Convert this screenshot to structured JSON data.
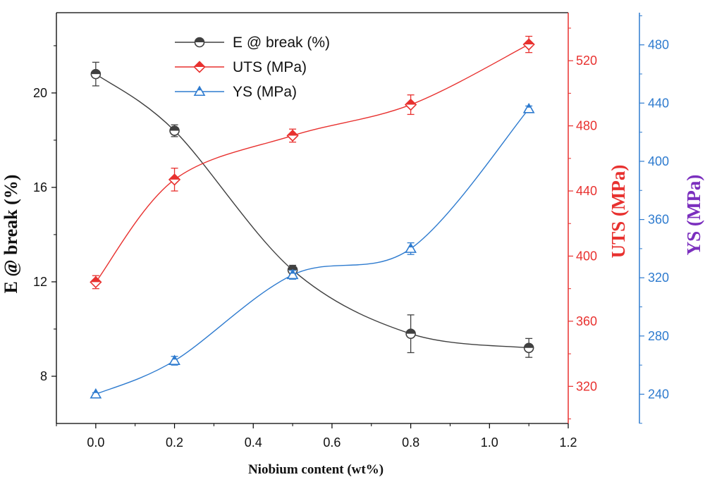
{
  "chart_data": {
    "type": "line",
    "xlabel": "Niobium content (wt%)",
    "x_ticks": [
      "0.0",
      "0.2",
      "0.4",
      "0.6",
      "0.8",
      "1.0",
      "1.2"
    ],
    "xlim": [
      -0.1,
      1.2
    ],
    "axes": {
      "left": {
        "label": "E @ break (%)",
        "ylim": [
          6,
          23.4
        ],
        "ticks": [
          "8",
          "12",
          "16",
          "20"
        ],
        "color": "#000000"
      },
      "right1": {
        "label": "UTS (MPa)",
        "ylim": [
          297.2,
          549.5
        ],
        "ticks": [
          "320",
          "360",
          "400",
          "440",
          "480",
          "520"
        ],
        "color": "#e8312f"
      },
      "right2": {
        "label": "YS (MPa)",
        "ylim": [
          219.9,
          502.1
        ],
        "ticks": [
          "240",
          "280",
          "320",
          "360",
          "400",
          "440",
          "480"
        ],
        "color": "#2e7bcf",
        "label_color": "#7b2fbe"
      }
    },
    "legend_position": "top-left",
    "grid": false,
    "series": [
      {
        "name": "E @ break (%)",
        "axis": "left",
        "color": "#404040",
        "marker": "circle-half",
        "x": [
          0.0,
          0.2,
          0.5,
          0.8,
          1.1
        ],
        "y": [
          20.8,
          18.4,
          12.5,
          9.8,
          9.2
        ],
        "err": [
          0.5,
          0.25,
          0.2,
          0.8,
          0.4
        ]
      },
      {
        "name": "UTS (MPa)",
        "axis": "right1",
        "color": "#e8312f",
        "marker": "diamond-half",
        "x": [
          0.0,
          0.2,
          0.5,
          0.8,
          1.1
        ],
        "y": [
          384,
          447,
          474,
          493,
          530
        ],
        "err": [
          4,
          7,
          4,
          6,
          5
        ]
      },
      {
        "name": "YS (MPa)",
        "axis": "right2",
        "color": "#2e7bcf",
        "marker": "triangle-half",
        "x": [
          0.0,
          0.2,
          0.5,
          0.8,
          1.1
        ],
        "y": [
          240,
          263,
          322,
          340,
          436
        ],
        "err": [
          1,
          3,
          3,
          4,
          2
        ]
      }
    ]
  }
}
